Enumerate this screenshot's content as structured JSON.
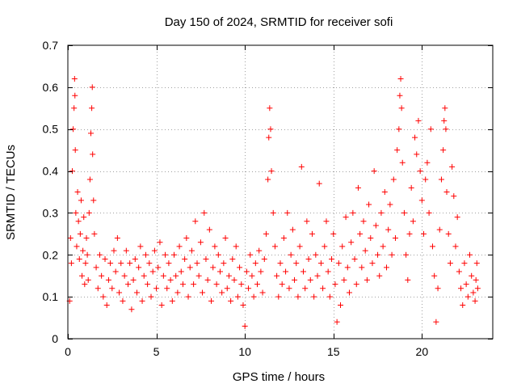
{
  "chart_data": {
    "type": "scatter",
    "title": "Day 150 of 2024, SRMTID for receiver sofi",
    "xlabel": "GPS time / hours",
    "ylabel": "SRMTID / TECUs",
    "xlim": [
      0,
      24
    ],
    "ylim": [
      0,
      0.7
    ],
    "xticks": [
      0,
      5,
      10,
      15,
      20
    ],
    "xtick_labels": [
      "0",
      "5",
      "10",
      "15",
      "20"
    ],
    "yticks": [
      0,
      0.1,
      0.2,
      0.3,
      0.4,
      0.5,
      0.6,
      0.7
    ],
    "ytick_labels": [
      "0",
      "0.1",
      "0.2",
      "0.3",
      "0.4",
      "0.5",
      "0.6",
      "0.7"
    ],
    "grid": true,
    "marker": "+",
    "marker_color": "#ff0000",
    "series": [
      {
        "name": "sofi",
        "points": [
          [
            0.1,
            0.09
          ],
          [
            0.15,
            0.24
          ],
          [
            0.2,
            0.18
          ],
          [
            0.25,
            0.4
          ],
          [
            0.3,
            0.5
          ],
          [
            0.35,
            0.55
          ],
          [
            0.38,
            0.62
          ],
          [
            0.4,
            0.58
          ],
          [
            0.42,
            0.45
          ],
          [
            0.45,
            0.3
          ],
          [
            0.5,
            0.22
          ],
          [
            0.55,
            0.35
          ],
          [
            0.6,
            0.28
          ],
          [
            0.65,
            0.19
          ],
          [
            0.7,
            0.25
          ],
          [
            0.75,
            0.33
          ],
          [
            0.8,
            0.15
          ],
          [
            0.85,
            0.21
          ],
          [
            0.9,
            0.29
          ],
          [
            0.95,
            0.13
          ],
          [
            1.0,
            0.18
          ],
          [
            1.05,
            0.24
          ],
          [
            1.1,
            0.2
          ],
          [
            1.15,
            0.14
          ],
          [
            1.2,
            0.3
          ],
          [
            1.25,
            0.38
          ],
          [
            1.3,
            0.49
          ],
          [
            1.35,
            0.55
          ],
          [
            1.38,
            0.6
          ],
          [
            1.4,
            0.44
          ],
          [
            1.45,
            0.33
          ],
          [
            1.5,
            0.25
          ],
          [
            1.6,
            0.17
          ],
          [
            1.7,
            0.12
          ],
          [
            1.8,
            0.2
          ],
          [
            1.9,
            0.15
          ],
          [
            2.0,
            0.1
          ],
          [
            2.1,
            0.19
          ],
          [
            2.2,
            0.08
          ],
          [
            2.3,
            0.14
          ],
          [
            2.4,
            0.18
          ],
          [
            2.5,
            0.12
          ],
          [
            2.6,
            0.21
          ],
          [
            2.7,
            0.16
          ],
          [
            2.8,
            0.24
          ],
          [
            2.9,
            0.11
          ],
          [
            3.0,
            0.18
          ],
          [
            3.1,
            0.09
          ],
          [
            3.2,
            0.15
          ],
          [
            3.3,
            0.21
          ],
          [
            3.4,
            0.13
          ],
          [
            3.5,
            0.18
          ],
          [
            3.6,
            0.07
          ],
          [
            3.7,
            0.14
          ],
          [
            3.8,
            0.19
          ],
          [
            3.9,
            0.11
          ],
          [
            4.0,
            0.17
          ],
          [
            4.1,
            0.22
          ],
          [
            4.2,
            0.09
          ],
          [
            4.3,
            0.15
          ],
          [
            4.4,
            0.2
          ],
          [
            4.5,
            0.13
          ],
          [
            4.6,
            0.18
          ],
          [
            4.7,
            0.1
          ],
          [
            4.8,
            0.16
          ],
          [
            4.9,
            0.21
          ],
          [
            5.0,
            0.12
          ],
          [
            5.1,
            0.17
          ],
          [
            5.2,
            0.23
          ],
          [
            5.3,
            0.08
          ],
          [
            5.4,
            0.15
          ],
          [
            5.5,
            0.2
          ],
          [
            5.6,
            0.12
          ],
          [
            5.7,
            0.18
          ],
          [
            5.8,
            0.14
          ],
          [
            5.9,
            0.09
          ],
          [
            6.0,
            0.2
          ],
          [
            6.1,
            0.15
          ],
          [
            6.2,
            0.11
          ],
          [
            6.3,
            0.22
          ],
          [
            6.4,
            0.16
          ],
          [
            6.5,
            0.13
          ],
          [
            6.6,
            0.19
          ],
          [
            6.7,
            0.24
          ],
          [
            6.8,
            0.1
          ],
          [
            6.9,
            0.17
          ],
          [
            7.0,
            0.21
          ],
          [
            7.1,
            0.13
          ],
          [
            7.2,
            0.28
          ],
          [
            7.3,
            0.18
          ],
          [
            7.4,
            0.15
          ],
          [
            7.5,
            0.23
          ],
          [
            7.6,
            0.11
          ],
          [
            7.7,
            0.3
          ],
          [
            7.8,
            0.19
          ],
          [
            7.9,
            0.14
          ],
          [
            8.0,
            0.26
          ],
          [
            8.1,
            0.09
          ],
          [
            8.2,
            0.17
          ],
          [
            8.3,
            0.22
          ],
          [
            8.4,
            0.13
          ],
          [
            8.5,
            0.2
          ],
          [
            8.6,
            0.16
          ],
          [
            8.7,
            0.11
          ],
          [
            8.8,
            0.18
          ],
          [
            8.9,
            0.24
          ],
          [
            9.0,
            0.12
          ],
          [
            9.1,
            0.15
          ],
          [
            9.2,
            0.09
          ],
          [
            9.3,
            0.19
          ],
          [
            9.4,
            0.14
          ],
          [
            9.5,
            0.22
          ],
          [
            9.6,
            0.1
          ],
          [
            9.7,
            0.17
          ],
          [
            9.8,
            0.13
          ],
          [
            9.9,
            0.08
          ],
          [
            10.0,
            0.03
          ],
          [
            10.1,
            0.16
          ],
          [
            10.2,
            0.12
          ],
          [
            10.3,
            0.2
          ],
          [
            10.4,
            0.15
          ],
          [
            10.5,
            0.1
          ],
          [
            10.6,
            0.18
          ],
          [
            10.7,
            0.13
          ],
          [
            10.8,
            0.21
          ],
          [
            10.9,
            0.16
          ],
          [
            11.0,
            0.11
          ],
          [
            11.1,
            0.19
          ],
          [
            11.2,
            0.25
          ],
          [
            11.3,
            0.38
          ],
          [
            11.35,
            0.48
          ],
          [
            11.4,
            0.55
          ],
          [
            11.45,
            0.5
          ],
          [
            11.5,
            0.4
          ],
          [
            11.6,
            0.3
          ],
          [
            11.7,
            0.22
          ],
          [
            11.8,
            0.15
          ],
          [
            11.9,
            0.1
          ],
          [
            12.0,
            0.18
          ],
          [
            12.1,
            0.13
          ],
          [
            12.2,
            0.24
          ],
          [
            12.3,
            0.16
          ],
          [
            12.4,
            0.3
          ],
          [
            12.5,
            0.12
          ],
          [
            12.6,
            0.2
          ],
          [
            12.7,
            0.26
          ],
          [
            12.8,
            0.14
          ],
          [
            12.9,
            0.18
          ],
          [
            13.0,
            0.1
          ],
          [
            13.1,
            0.22
          ],
          [
            13.2,
            0.41
          ],
          [
            13.3,
            0.16
          ],
          [
            13.4,
            0.12
          ],
          [
            13.5,
            0.28
          ],
          [
            13.6,
            0.19
          ],
          [
            13.7,
            0.14
          ],
          [
            13.8,
            0.25
          ],
          [
            13.9,
            0.1
          ],
          [
            14.0,
            0.2
          ],
          [
            14.1,
            0.15
          ],
          [
            14.2,
            0.37
          ],
          [
            14.3,
            0.18
          ],
          [
            14.4,
            0.12
          ],
          [
            14.5,
            0.22
          ],
          [
            14.6,
            0.28
          ],
          [
            14.7,
            0.16
          ],
          [
            14.8,
            0.1
          ],
          [
            14.9,
            0.19
          ],
          [
            15.0,
            0.25
          ],
          [
            15.1,
            0.13
          ],
          [
            15.2,
            0.04
          ],
          [
            15.3,
            0.18
          ],
          [
            15.4,
            0.08
          ],
          [
            15.5,
            0.22
          ],
          [
            15.6,
            0.14
          ],
          [
            15.7,
            0.29
          ],
          [
            15.8,
            0.17
          ],
          [
            15.9,
            0.11
          ],
          [
            16.0,
            0.23
          ],
          [
            16.1,
            0.3
          ],
          [
            16.2,
            0.19
          ],
          [
            16.3,
            0.13
          ],
          [
            16.4,
            0.36
          ],
          [
            16.5,
            0.25
          ],
          [
            16.6,
            0.17
          ],
          [
            16.7,
            0.28
          ],
          [
            16.8,
            0.21
          ],
          [
            16.9,
            0.14
          ],
          [
            17.0,
            0.32
          ],
          [
            17.1,
            0.24
          ],
          [
            17.2,
            0.18
          ],
          [
            17.3,
            0.4
          ],
          [
            17.4,
            0.27
          ],
          [
            17.5,
            0.2
          ],
          [
            17.6,
            0.15
          ],
          [
            17.7,
            0.3
          ],
          [
            17.8,
            0.22
          ],
          [
            17.9,
            0.35
          ],
          [
            18.0,
            0.17
          ],
          [
            18.1,
            0.26
          ],
          [
            18.2,
            0.32
          ],
          [
            18.3,
            0.2
          ],
          [
            18.4,
            0.38
          ],
          [
            18.5,
            0.24
          ],
          [
            18.6,
            0.45
          ],
          [
            18.7,
            0.5
          ],
          [
            18.75,
            0.58
          ],
          [
            18.8,
            0.62
          ],
          [
            18.85,
            0.55
          ],
          [
            18.9,
            0.42
          ],
          [
            19.0,
            0.3
          ],
          [
            19.1,
            0.2
          ],
          [
            19.2,
            0.14
          ],
          [
            19.3,
            0.25
          ],
          [
            19.4,
            0.36
          ],
          [
            19.5,
            0.28
          ],
          [
            19.6,
            0.48
          ],
          [
            19.7,
            0.44
          ],
          [
            19.8,
            0.52
          ],
          [
            19.9,
            0.4
          ],
          [
            20.0,
            0.33
          ],
          [
            20.1,
            0.25
          ],
          [
            20.2,
            0.38
          ],
          [
            20.3,
            0.42
          ],
          [
            20.4,
            0.3
          ],
          [
            20.5,
            0.5
          ],
          [
            20.6,
            0.22
          ],
          [
            20.7,
            0.15
          ],
          [
            20.8,
            0.04
          ],
          [
            20.9,
            0.12
          ],
          [
            21.0,
            0.26
          ],
          [
            21.1,
            0.38
          ],
          [
            21.2,
            0.45
          ],
          [
            21.25,
            0.52
          ],
          [
            21.3,
            0.55
          ],
          [
            21.35,
            0.5
          ],
          [
            21.4,
            0.35
          ],
          [
            21.5,
            0.25
          ],
          [
            21.6,
            0.18
          ],
          [
            21.7,
            0.41
          ],
          [
            21.8,
            0.34
          ],
          [
            21.9,
            0.22
          ],
          [
            22.0,
            0.29
          ],
          [
            22.1,
            0.16
          ],
          [
            22.2,
            0.12
          ],
          [
            22.3,
            0.08
          ],
          [
            22.4,
            0.18
          ],
          [
            22.5,
            0.13
          ],
          [
            22.6,
            0.1
          ],
          [
            22.7,
            0.2
          ],
          [
            22.8,
            0.15
          ],
          [
            22.9,
            0.11
          ],
          [
            23.0,
            0.09
          ],
          [
            23.05,
            0.14
          ],
          [
            23.1,
            0.18
          ],
          [
            23.15,
            0.12
          ]
        ]
      }
    ]
  }
}
